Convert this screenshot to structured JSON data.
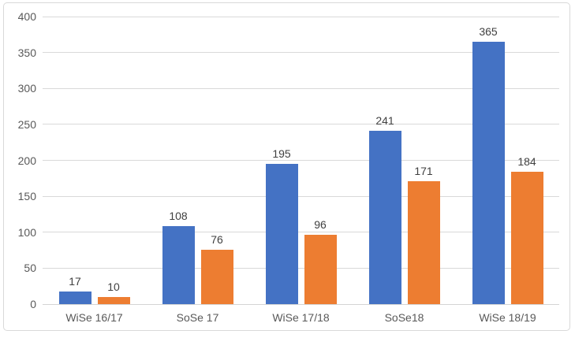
{
  "chart_data": {
    "type": "bar",
    "categories": [
      "WiSe 16/17",
      "SoSe 17",
      "WiSe 17/18",
      "SoSe18",
      "WiSe 18/19"
    ],
    "series": [
      {
        "name": "blue-series",
        "color": "#4472C4",
        "values": [
          17,
          108,
          195,
          241,
          365
        ]
      },
      {
        "name": "orange-series",
        "color": "#ED7D31",
        "values": [
          10,
          76,
          96,
          171,
          184
        ]
      }
    ],
    "title": "",
    "xlabel": "",
    "ylabel": "",
    "ylim": [
      0,
      400
    ],
    "yticks": [
      0,
      50,
      100,
      150,
      200,
      250,
      300,
      350,
      400
    ],
    "grid": true,
    "legend": false,
    "data_labels": true
  },
  "style": {
    "grid_color": "#D9D9D9",
    "axis_text_color": "#595959",
    "data_label_color": "#404040",
    "frame_border_color": "#D9D9D9",
    "background": "#FFFFFF"
  }
}
